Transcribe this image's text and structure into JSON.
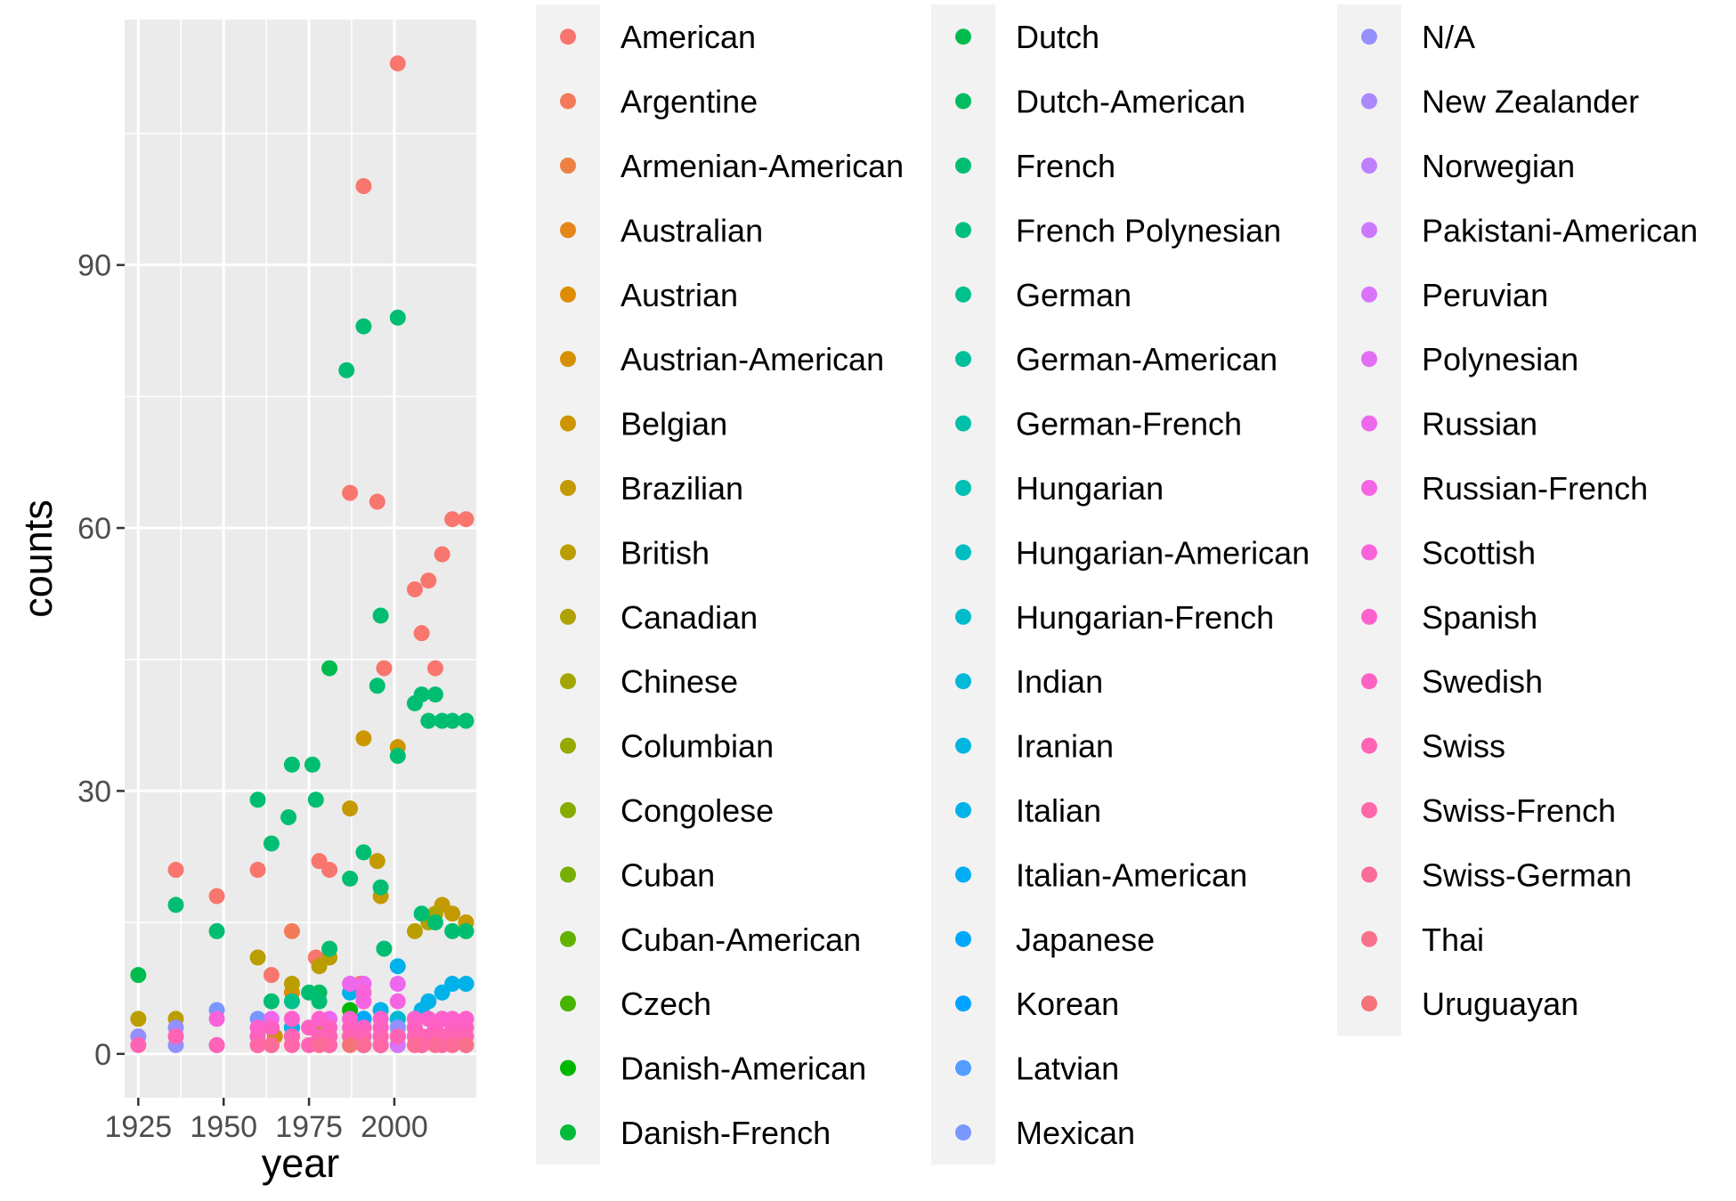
{
  "chart_data": {
    "type": "scatter",
    "title": "",
    "xlabel": "year",
    "ylabel": "counts",
    "xlim": [
      1921,
      2024
    ],
    "ylim": [
      -5,
      118
    ],
    "x_ticks": [
      1925,
      1950,
      1975,
      2000
    ],
    "x_tick_labels": [
      "1925",
      "1950",
      "1975",
      "2000"
    ],
    "y_ticks": [
      0,
      30,
      60,
      90
    ],
    "y_tick_labels": [
      "0",
      "30",
      "60",
      "90"
    ],
    "grid": true,
    "legend_position": "right",
    "series": [
      {
        "name": "American",
        "color": "#F8766D",
        "points": [
          [
            1936,
            21
          ],
          [
            1948,
            18
          ],
          [
            1960,
            21
          ],
          [
            1964,
            9
          ],
          [
            1978,
            22
          ],
          [
            1981,
            21
          ],
          [
            1987,
            64
          ],
          [
            1991,
            99
          ],
          [
            1995,
            63
          ],
          [
            1997,
            44
          ],
          [
            2001,
            113
          ],
          [
            2006,
            53
          ],
          [
            2008,
            48
          ],
          [
            2010,
            54
          ],
          [
            2012,
            44
          ],
          [
            2014,
            57
          ],
          [
            2017,
            61
          ],
          [
            2021,
            61
          ],
          [
            1977,
            11
          ]
        ]
      },
      {
        "name": "Argentine",
        "color": "#F37B59",
        "points": [
          [
            1970,
            14
          ],
          [
            1990,
            8
          ]
        ]
      },
      {
        "name": "Armenian-American",
        "color": "#ED8141",
        "points": [
          [
            2001,
            2
          ]
        ]
      },
      {
        "name": "Australian",
        "color": "#E6861A",
        "points": [
          [
            1996,
            3
          ]
        ]
      },
      {
        "name": "Austrian",
        "color": "#DE8C00",
        "points": [
          [
            1970,
            7
          ]
        ]
      },
      {
        "name": "Austrian-American",
        "color": "#D69100",
        "points": [
          [
            1965,
            2
          ]
        ]
      },
      {
        "name": "Belgian",
        "color": "#CD9600",
        "points": [
          [
            1991,
            36
          ],
          [
            2001,
            35
          ]
        ]
      },
      {
        "name": "Brazilian",
        "color": "#C49A00",
        "points": [
          [
            1987,
            28
          ],
          [
            1995,
            22
          ],
          [
            1996,
            18
          ],
          [
            2014,
            17
          ],
          [
            2017,
            16
          ],
          [
            2021,
            15
          ]
        ]
      },
      {
        "name": "British",
        "color": "#BA9E00",
        "points": [
          [
            1925,
            4
          ],
          [
            1936,
            4
          ],
          [
            1960,
            11
          ],
          [
            1970,
            8
          ],
          [
            1978,
            10
          ],
          [
            1981,
            11
          ],
          [
            2006,
            14
          ]
        ]
      },
      {
        "name": "Canadian",
        "color": "#AFA200",
        "points": [
          [
            2010,
            15
          ],
          [
            2012,
            16
          ]
        ]
      },
      {
        "name": "Chinese",
        "color": "#A3A500",
        "points": [
          [
            1978,
            3
          ]
        ]
      },
      {
        "name": "Columbian",
        "color": "#96A900",
        "points": [
          [
            1987,
            2
          ]
        ]
      },
      {
        "name": "Congolese",
        "color": "#87AC00",
        "points": [
          [
            2001,
            1
          ]
        ]
      },
      {
        "name": "Cuban",
        "color": "#77AF00",
        "points": [
          [
            1996,
            2
          ]
        ]
      },
      {
        "name": "Cuban-American",
        "color": "#63B200",
        "points": [
          [
            2008,
            1
          ]
        ]
      },
      {
        "name": "Czech",
        "color": "#47B500",
        "points": [
          [
            1970,
            2
          ]
        ]
      },
      {
        "name": "Danish-American",
        "color": "#00B700",
        "points": [
          [
            1987,
            5
          ]
        ]
      },
      {
        "name": "Danish-French",
        "color": "#00BA38",
        "points": [
          [
            1991,
            4
          ]
        ]
      },
      {
        "name": "Dutch",
        "color": "#00BC4F",
        "points": [
          [
            1925,
            9
          ],
          [
            1981,
            44
          ]
        ]
      },
      {
        "name": "Dutch-American",
        "color": "#00BD61",
        "points": [
          [
            1978,
            7
          ]
        ]
      },
      {
        "name": "French",
        "color": "#00BE71",
        "points": [
          [
            1936,
            17
          ],
          [
            1948,
            14
          ],
          [
            1960,
            29
          ],
          [
            1964,
            24
          ],
          [
            1969,
            27
          ],
          [
            1970,
            33
          ],
          [
            1976,
            33
          ],
          [
            1977,
            29
          ],
          [
            1981,
            12
          ],
          [
            1986,
            78
          ],
          [
            1987,
            20
          ],
          [
            1991,
            83
          ],
          [
            1991,
            23
          ],
          [
            1995,
            42
          ],
          [
            1996,
            19
          ],
          [
            1996,
            50
          ],
          [
            1997,
            12
          ],
          [
            2001,
            84
          ],
          [
            2001,
            34
          ],
          [
            2006,
            40
          ],
          [
            2008,
            41
          ],
          [
            2010,
            38
          ],
          [
            2012,
            41
          ],
          [
            2014,
            38
          ],
          [
            2017,
            38
          ],
          [
            2021,
            38
          ],
          [
            2008,
            16
          ],
          [
            2012,
            15
          ],
          [
            2017,
            14
          ],
          [
            2021,
            14
          ],
          [
            1964,
            6
          ],
          [
            1975,
            7
          ],
          [
            1978,
            6
          ]
        ]
      },
      {
        "name": "French Polynesian",
        "color": "#00BF80",
        "points": [
          [
            2001,
            3
          ]
        ]
      },
      {
        "name": "German",
        "color": "#00C08E",
        "points": [
          [
            1964,
            3
          ],
          [
            1970,
            6
          ],
          [
            1991,
            3
          ],
          [
            2001,
            4
          ]
        ]
      },
      {
        "name": "German-American",
        "color": "#00C09B",
        "points": [
          [
            1970,
            3
          ]
        ]
      },
      {
        "name": "German-French",
        "color": "#00C0A8",
        "points": [
          [
            1991,
            1
          ]
        ]
      },
      {
        "name": "Hungarian",
        "color": "#00BFB4",
        "points": [
          [
            1960,
            2
          ],
          [
            1981,
            2
          ],
          [
            2001,
            2
          ]
        ]
      },
      {
        "name": "Hungarian-American",
        "color": "#00BEC0",
        "points": [
          [
            1996,
            1
          ]
        ]
      },
      {
        "name": "Hungarian-French",
        "color": "#00BCCB",
        "points": [
          [
            1981,
            1
          ]
        ]
      },
      {
        "name": "Indian",
        "color": "#00B9D6",
        "points": [
          [
            2001,
            4
          ]
        ]
      },
      {
        "name": "Iranian",
        "color": "#00B6E0",
        "points": [
          [
            2012,
            2
          ]
        ]
      },
      {
        "name": "Italian",
        "color": "#00B2E9",
        "points": [
          [
            1987,
            7
          ],
          [
            1996,
            5
          ],
          [
            2001,
            10
          ],
          [
            2008,
            5
          ],
          [
            2010,
            6
          ],
          [
            2014,
            7
          ],
          [
            2017,
            8
          ],
          [
            2021,
            8
          ],
          [
            1964,
            3
          ],
          [
            1970,
            3
          ]
        ]
      },
      {
        "name": "Italian-American",
        "color": "#00ADF2",
        "points": [
          [
            2006,
            4
          ]
        ]
      },
      {
        "name": "Japanese",
        "color": "#00A8F9",
        "points": [
          [
            1991,
            4
          ],
          [
            2006,
            3
          ],
          [
            2014,
            4
          ]
        ]
      },
      {
        "name": "Korean",
        "color": "#00A3FF",
        "points": [
          [
            2012,
            3
          ]
        ]
      },
      {
        "name": "Latvian",
        "color": "#529DFF",
        "points": [
          [
            1948,
            1
          ]
        ]
      },
      {
        "name": "Mexican",
        "color": "#7997FF",
        "points": [
          [
            1948,
            5
          ],
          [
            1960,
            4
          ],
          [
            1970,
            2
          ]
        ]
      },
      {
        "name": "N/A",
        "color": "#9590FF",
        "points": [
          [
            1925,
            2
          ],
          [
            1936,
            3
          ],
          [
            1936,
            1
          ],
          [
            2001,
            3
          ],
          [
            2010,
            4
          ]
        ]
      },
      {
        "name": "New Zealander",
        "color": "#AB88FF",
        "points": [
          [
            2017,
            2
          ]
        ]
      },
      {
        "name": "Norwegian",
        "color": "#BD81FF",
        "points": [
          [
            1991,
            2
          ]
        ]
      },
      {
        "name": "Pakistani-American",
        "color": "#CC79FF",
        "points": [
          [
            2021,
            1
          ]
        ]
      },
      {
        "name": "Peruvian",
        "color": "#D973FC",
        "points": [
          [
            2001,
            1
          ]
        ]
      },
      {
        "name": "Polynesian",
        "color": "#E46DF6",
        "points": [
          [
            1996,
            1
          ]
        ]
      },
      {
        "name": "Russian",
        "color": "#ED68ED",
        "points": [
          [
            1987,
            8
          ],
          [
            1991,
            8
          ],
          [
            2001,
            8
          ],
          [
            1964,
            4
          ],
          [
            1970,
            4
          ],
          [
            1981,
            4
          ]
        ]
      },
      {
        "name": "Russian-French",
        "color": "#F564E3",
        "points": [
          [
            1991,
            6
          ],
          [
            2001,
            6
          ]
        ]
      },
      {
        "name": "Scottish",
        "color": "#FA62D9",
        "points": [
          [
            1991,
            7
          ],
          [
            1948,
            4
          ]
        ]
      },
      {
        "name": "Spanish",
        "color": "#FE61CE",
        "points": [
          [
            1960,
            3
          ],
          [
            1970,
            4
          ],
          [
            1978,
            4
          ],
          [
            1987,
            4
          ],
          [
            1996,
            4
          ],
          [
            2006,
            4
          ],
          [
            2010,
            4
          ],
          [
            2014,
            4
          ],
          [
            2017,
            4
          ],
          [
            2021,
            4
          ]
        ]
      },
      {
        "name": "Swedish",
        "color": "#FF61C3",
        "points": [
          [
            1960,
            2
          ],
          [
            1964,
            3
          ],
          [
            1975,
            3
          ],
          [
            1981,
            3
          ],
          [
            1987,
            3
          ],
          [
            1991,
            3
          ],
          [
            1996,
            3
          ],
          [
            2006,
            3
          ],
          [
            2012,
            3
          ],
          [
            2017,
            3
          ],
          [
            2021,
            3
          ]
        ]
      },
      {
        "name": "Swiss",
        "color": "#FF63B6",
        "points": [
          [
            1925,
            1
          ],
          [
            1936,
            2
          ],
          [
            1948,
            1
          ],
          [
            1960,
            1
          ],
          [
            1964,
            1
          ],
          [
            1970,
            2
          ],
          [
            1975,
            1
          ],
          [
            1978,
            2
          ],
          [
            1981,
            2
          ],
          [
            1987,
            2
          ],
          [
            1991,
            2
          ],
          [
            1996,
            2
          ],
          [
            2001,
            2
          ],
          [
            2006,
            2
          ],
          [
            2008,
            2
          ],
          [
            2010,
            2
          ],
          [
            2012,
            2
          ],
          [
            2014,
            2
          ],
          [
            2017,
            2
          ],
          [
            2021,
            2
          ]
        ]
      },
      {
        "name": "Swiss-French",
        "color": "#FF67A8",
        "points": [
          [
            1960,
            1
          ],
          [
            1970,
            1
          ],
          [
            1981,
            1
          ],
          [
            1996,
            1
          ],
          [
            2008,
            1
          ],
          [
            2014,
            1
          ]
        ]
      },
      {
        "name": "Swiss-German",
        "color": "#FC6C99",
        "points": [
          [
            1964,
            1
          ],
          [
            1978,
            1
          ],
          [
            1991,
            1
          ],
          [
            2006,
            1
          ],
          [
            2012,
            1
          ],
          [
            2017,
            1
          ]
        ]
      },
      {
        "name": "Thai",
        "color": "#F8718A",
        "points": [
          [
            2021,
            1
          ]
        ]
      },
      {
        "name": "Uruguayan",
        "color": "#F47479",
        "points": [
          [
            1987,
            1
          ]
        ]
      }
    ]
  }
}
